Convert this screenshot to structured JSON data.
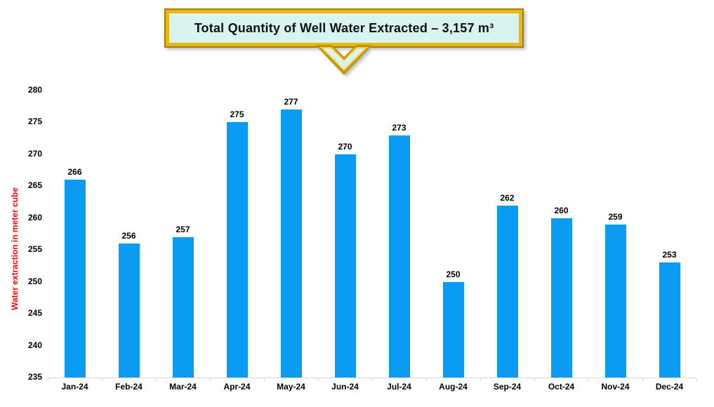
{
  "callout": {
    "title": "Total Quantity of Well Water Extracted – 3,157 m³"
  },
  "colors": {
    "bar": "#0A9CF2",
    "callout_bg": "#D7F4F0",
    "callout_border": "#EBB611",
    "callout_border_dark": "#A47D05",
    "axis_line": "#D9D9D9",
    "ylabel_text": "#FF0000",
    "label_text": "#000000",
    "background": "#FFFFFF"
  },
  "chart_data": {
    "type": "bar",
    "title": "Total Quantity of Well Water Extracted – 3,157 m³",
    "categories": [
      "Jan-24",
      "Feb-24",
      "Mar-24",
      "Apr-24",
      "May-24",
      "Jun-24",
      "Jul-24",
      "Aug-24",
      "Sep-24",
      "Oct-24",
      "Nov-24",
      "Dec-24"
    ],
    "values": [
      266,
      256,
      257,
      275,
      277,
      270,
      273,
      250,
      262,
      260,
      259,
      253
    ],
    "xlabel": "",
    "ylabel": "Water extraction in meter cube",
    "ylim": [
      235,
      280
    ],
    "yticks": [
      235,
      240,
      245,
      250,
      255,
      260,
      265,
      270,
      275,
      280
    ],
    "grid": false,
    "legend": false,
    "data_labels": true
  }
}
